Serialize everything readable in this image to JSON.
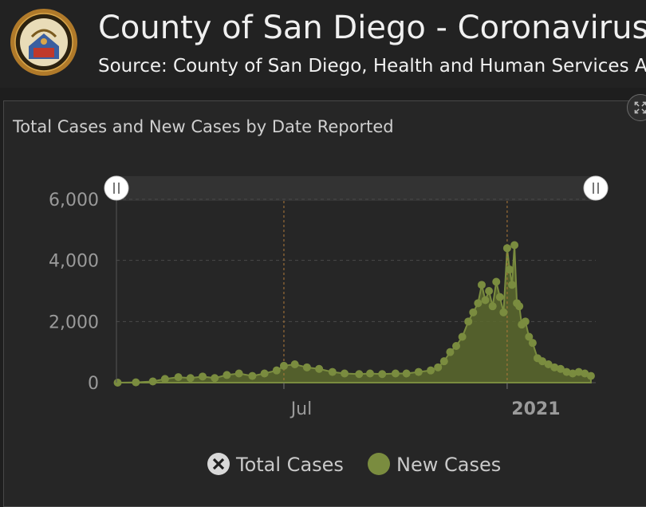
{
  "header": {
    "title": "County of San Diego - Coronavirus",
    "subtitle": "Source: County of San Diego, Health and Human Services Agency"
  },
  "panel": {
    "title": "Total Cases and New Cases by Date Reported"
  },
  "legend": {
    "total_label": "Total Cases",
    "new_label": "New Cases"
  },
  "colors": {
    "series": "#7a8c3f",
    "area": "#5c6a2e",
    "background": "#1e1e1e",
    "axis_text": "#9a9a9a"
  },
  "chart_data": {
    "type": "area",
    "title": "Total Cases and New Cases by Date Reported",
    "xlabel": "",
    "ylabel": "",
    "ylim": [
      0,
      6000
    ],
    "y_ticks": [
      0,
      2000,
      4000,
      6000
    ],
    "y_tick_labels": [
      "0",
      "2,000",
      "4,000",
      "6,000"
    ],
    "x_tick_labels": [
      "Jul",
      "2021"
    ],
    "x_tick_dates": [
      "2020-07-01",
      "2021-01-01"
    ],
    "x_range": [
      "2020-02-14",
      "2021-03-15"
    ],
    "series": [
      {
        "name": "Total Cases",
        "visible": false,
        "x": [],
        "values": []
      },
      {
        "name": "New Cases",
        "visible": true,
        "x": [
          "2020-02-15",
          "2020-03-01",
          "2020-03-15",
          "2020-03-25",
          "2020-04-05",
          "2020-04-15",
          "2020-04-25",
          "2020-05-05",
          "2020-05-15",
          "2020-05-25",
          "2020-06-05",
          "2020-06-15",
          "2020-06-25",
          "2020-07-01",
          "2020-07-10",
          "2020-07-20",
          "2020-07-30",
          "2020-08-10",
          "2020-08-20",
          "2020-09-01",
          "2020-09-10",
          "2020-09-20",
          "2020-10-01",
          "2020-10-10",
          "2020-10-20",
          "2020-10-30",
          "2020-11-05",
          "2020-11-10",
          "2020-11-15",
          "2020-11-20",
          "2020-11-25",
          "2020-11-30",
          "2020-12-04",
          "2020-12-08",
          "2020-12-11",
          "2020-12-14",
          "2020-12-17",
          "2020-12-20",
          "2020-12-23",
          "2020-12-26",
          "2020-12-29",
          "2021-01-01",
          "2021-01-03",
          "2021-01-05",
          "2021-01-07",
          "2021-01-09",
          "2021-01-11",
          "2021-01-13",
          "2021-01-16",
          "2021-01-19",
          "2021-01-22",
          "2021-01-26",
          "2021-01-30",
          "2021-02-04",
          "2021-02-09",
          "2021-02-14",
          "2021-02-19",
          "2021-02-24",
          "2021-03-01",
          "2021-03-06",
          "2021-03-11"
        ],
        "values": [
          0,
          10,
          40,
          120,
          180,
          150,
          200,
          150,
          250,
          300,
          220,
          300,
          400,
          550,
          600,
          500,
          450,
          350,
          300,
          280,
          300,
          280,
          300,
          300,
          350,
          400,
          500,
          700,
          1000,
          1200,
          1500,
          2000,
          2300,
          2600,
          3200,
          2700,
          3000,
          2500,
          3300,
          2800,
          2300,
          4400,
          3700,
          3200,
          4500,
          2600,
          2500,
          1900,
          2000,
          1500,
          1300,
          800,
          700,
          600,
          500,
          450,
          350,
          300,
          350,
          300,
          220
        ]
      }
    ]
  }
}
